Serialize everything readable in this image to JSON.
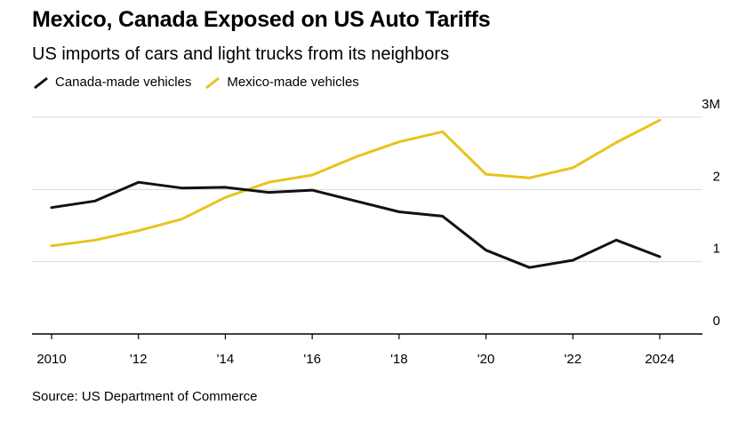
{
  "chart_data": {
    "type": "line",
    "title": "Mexico, Canada Exposed on US Auto Tariffs",
    "subtitle": "US imports of cars and light trucks from its neighbors",
    "x": [
      2010,
      2011,
      2012,
      2013,
      2014,
      2015,
      2016,
      2017,
      2018,
      2019,
      2020,
      2021,
      2022,
      2023,
      2024
    ],
    "x_tick_values": [
      2010,
      2012,
      2014,
      2016,
      2018,
      2020,
      2022,
      2024
    ],
    "x_tick_labels": [
      "2010",
      "'12",
      "'14",
      "'16",
      "'18",
      "'20",
      "'22",
      "2024"
    ],
    "y_tick_values": [
      0,
      1,
      2,
      3
    ],
    "y_tick_labels": [
      "0",
      "1",
      "2",
      "3M"
    ],
    "ylim": [
      0,
      3
    ],
    "xlabel": "",
    "ylabel": "",
    "grid": true,
    "legend_position": "top-left",
    "series": [
      {
        "name": "Canada-made vehicles",
        "color": "#111111",
        "values": [
          1.75,
          1.84,
          2.1,
          2.02,
          2.03,
          1.96,
          1.99,
          1.84,
          1.69,
          1.63,
          1.16,
          0.92,
          1.02,
          1.3,
          1.07
        ]
      },
      {
        "name": "Mexico-made vehicles",
        "color": "#e8c31e",
        "values": [
          1.22,
          1.3,
          1.43,
          1.59,
          1.89,
          2.1,
          2.2,
          2.45,
          2.66,
          2.8,
          2.21,
          2.16,
          2.3,
          2.65,
          2.96
        ]
      }
    ]
  },
  "source": "Source: US Department of Commerce",
  "colors": {
    "grid": "#d9d9d9",
    "axis": "#000000"
  }
}
